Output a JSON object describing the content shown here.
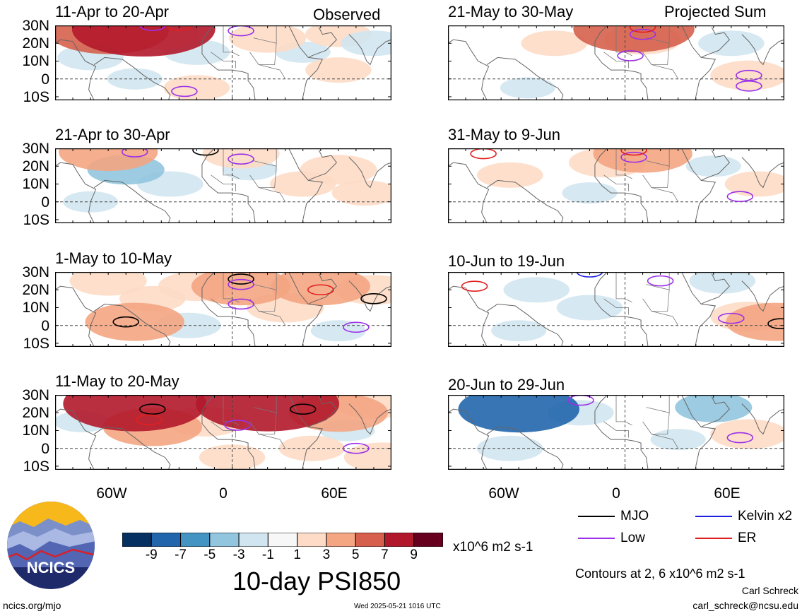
{
  "observed_label": "Observed",
  "projected_label": "Projected Sum",
  "lat_labels": [
    "30N",
    "20N",
    "10N",
    "0",
    "10S"
  ],
  "lon_labels": [
    "60W",
    "0",
    "60E"
  ],
  "chart_data": [
    {
      "type": "heatmap",
      "title": "11-Apr to 20-Apr",
      "column": "left",
      "row": 0,
      "cells": [
        {
          "lon": -70,
          "lat": 27,
          "v": 7
        },
        {
          "lon": -50,
          "lat": 28,
          "v": 9
        },
        {
          "lon": -40,
          "lat": 25,
          "v": 3
        },
        {
          "lon": 20,
          "lat": 23,
          "v": 3
        },
        {
          "lon": 60,
          "lat": 25,
          "v": 2
        },
        {
          "lon": -20,
          "lat": 15,
          "v": -2
        },
        {
          "lon": 40,
          "lat": 15,
          "v": -1
        },
        {
          "lon": 80,
          "lat": 20,
          "v": -2
        },
        {
          "lon": -80,
          "lat": 12,
          "v": -2
        },
        {
          "lon": -55,
          "lat": 0,
          "v": -1
        },
        {
          "lon": 60,
          "lat": 5,
          "v": 2
        },
        {
          "lon": -20,
          "lat": -5,
          "v": 2
        }
      ],
      "contours": [
        {
          "kind": "Low",
          "lon": -45,
          "lat": 30
        },
        {
          "kind": "Low",
          "lon": 5,
          "lat": 27
        },
        {
          "kind": "Low",
          "lon": -27,
          "lat": -7
        },
        {
          "kind": "ER",
          "lon": -30,
          "lat": 30
        }
      ]
    },
    {
      "type": "heatmap",
      "title": "21-Apr to 30-Apr",
      "column": "left",
      "row": 1,
      "cells": [
        {
          "lon": -70,
          "lat": 28,
          "v": 5
        },
        {
          "lon": 5,
          "lat": 27,
          "v": 3
        },
        {
          "lon": 60,
          "lat": 18,
          "v": 3
        },
        {
          "lon": 40,
          "lat": 10,
          "v": 2
        },
        {
          "lon": 75,
          "lat": 5,
          "v": 2
        },
        {
          "lon": -60,
          "lat": 18,
          "v": -3
        },
        {
          "lon": -35,
          "lat": 10,
          "v": -2
        },
        {
          "lon": -80,
          "lat": 0,
          "v": -1
        },
        {
          "lon": 10,
          "lat": 18,
          "v": -1
        }
      ],
      "contours": [
        {
          "kind": "Low",
          "lon": -55,
          "lat": 28
        },
        {
          "kind": "Low",
          "lon": 5,
          "lat": 24
        },
        {
          "kind": "MJO",
          "lon": -15,
          "lat": 29
        }
      ]
    },
    {
      "type": "heatmap",
      "title": "1-May to 10-May",
      "column": "left",
      "row": 2,
      "cells": [
        {
          "lon": -70,
          "lat": 25,
          "v": 3
        },
        {
          "lon": -20,
          "lat": 22,
          "v": 3
        },
        {
          "lon": 5,
          "lat": 22,
          "v": 5
        },
        {
          "lon": 50,
          "lat": 22,
          "v": 5
        },
        {
          "lon": 30,
          "lat": 10,
          "v": 3
        },
        {
          "lon": -45,
          "lat": 15,
          "v": 2
        },
        {
          "lon": -55,
          "lat": 2,
          "v": 5
        },
        {
          "lon": 80,
          "lat": 20,
          "v": 3
        },
        {
          "lon": -25,
          "lat": 0,
          "v": -2
        },
        {
          "lon": 60,
          "lat": -3,
          "v": -1
        }
      ],
      "contours": [
        {
          "kind": "MJO",
          "lon": 5,
          "lat": 26
        },
        {
          "kind": "MJO",
          "lon": -60,
          "lat": 2
        },
        {
          "kind": "MJO",
          "lon": 80,
          "lat": 15
        },
        {
          "kind": "ER",
          "lon": 50,
          "lat": 20
        },
        {
          "kind": "Low",
          "lon": 5,
          "lat": 23
        },
        {
          "kind": "Low",
          "lon": 5,
          "lat": 12
        },
        {
          "kind": "Low",
          "lon": 70,
          "lat": -1
        }
      ]
    },
    {
      "type": "heatmap",
      "title": "11-May to 20-May",
      "column": "left",
      "row": 3,
      "cells": [
        {
          "lon": -55,
          "lat": 25,
          "v": 9
        },
        {
          "lon": 20,
          "lat": 25,
          "v": 9
        },
        {
          "lon": -45,
          "lat": 12,
          "v": 5
        },
        {
          "lon": 60,
          "lat": 20,
          "v": 5
        },
        {
          "lon": -15,
          "lat": 15,
          "v": 3
        },
        {
          "lon": 80,
          "lat": 25,
          "v": 3
        },
        {
          "lon": 0,
          "lat": -5,
          "v": 2
        },
        {
          "lon": 45,
          "lat": 0,
          "v": 2
        },
        {
          "lon": -85,
          "lat": 15,
          "v": -1
        },
        {
          "lon": 65,
          "lat": 10,
          "v": -1
        },
        {
          "lon": 85,
          "lat": -5,
          "v": 3
        }
      ],
      "contours": [
        {
          "kind": "MJO",
          "lon": -45,
          "lat": 22
        },
        {
          "kind": "MJO",
          "lon": 40,
          "lat": 22
        },
        {
          "kind": "ER",
          "lon": -47,
          "lat": 16
        },
        {
          "kind": "Low",
          "lon": 3,
          "lat": 13
        },
        {
          "kind": "Low",
          "lon": 70,
          "lat": 0
        }
      ]
    },
    {
      "type": "heatmap",
      "title": "21-May to 30-May",
      "column": "right",
      "row": 0,
      "cells": [
        {
          "lon": -40,
          "lat": 20,
          "v": 2
        },
        {
          "lon": 10,
          "lat": 22,
          "v": 3
        },
        {
          "lon": 5,
          "lat": 28,
          "v": 7
        },
        {
          "lon": 60,
          "lat": 20,
          "v": -2
        },
        {
          "lon": 70,
          "lat": 2,
          "v": 3
        },
        {
          "lon": -55,
          "lat": -5,
          "v": -1
        }
      ],
      "contours": [
        {
          "kind": "Low",
          "lon": 10,
          "lat": 25
        },
        {
          "kind": "Low",
          "lon": 70,
          "lat": 2
        },
        {
          "kind": "Low",
          "lon": 70,
          "lat": -4
        },
        {
          "kind": "Low",
          "lon": 3,
          "lat": 13
        },
        {
          "kind": "ER",
          "lon": 10,
          "lat": 29
        }
      ]
    },
    {
      "type": "heatmap",
      "title": "31-May to 9-Jun",
      "column": "right",
      "row": 1,
      "cells": [
        {
          "lon": -10,
          "lat": 22,
          "v": 3
        },
        {
          "lon": 10,
          "lat": 27,
          "v": 5
        },
        {
          "lon": -65,
          "lat": 15,
          "v": 2
        },
        {
          "lon": 75,
          "lat": 10,
          "v": 2
        },
        {
          "lon": 50,
          "lat": 20,
          "v": -1
        },
        {
          "lon": -20,
          "lat": 5,
          "v": -1
        }
      ],
      "contours": [
        {
          "kind": "Low",
          "lon": 5,
          "lat": 25
        },
        {
          "kind": "Low",
          "lon": 65,
          "lat": 3
        },
        {
          "kind": "ER",
          "lon": -80,
          "lat": 27
        },
        {
          "kind": "ER",
          "lon": 5,
          "lat": 29
        }
      ]
    },
    {
      "type": "heatmap",
      "title": "10-Jun to 19-Jun",
      "column": "right",
      "row": 2,
      "cells": [
        {
          "lon": -50,
          "lat": 20,
          "v": -2
        },
        {
          "lon": -20,
          "lat": 10,
          "v": -2
        },
        {
          "lon": 55,
          "lat": 25,
          "v": -2
        },
        {
          "lon": 70,
          "lat": 5,
          "v": 3
        },
        {
          "lon": 85,
          "lat": 2,
          "v": 5
        },
        {
          "lon": -60,
          "lat": -3,
          "v": -1
        }
      ],
      "contours": [
        {
          "kind": "Kelvin x2",
          "lon": -20,
          "lat": 30
        },
        {
          "kind": "Low",
          "lon": 20,
          "lat": 25
        },
        {
          "kind": "Low",
          "lon": 60,
          "lat": 4
        },
        {
          "kind": "ER",
          "lon": -85,
          "lat": 22
        },
        {
          "kind": "MJO",
          "lon": 88,
          "lat": 1
        }
      ]
    },
    {
      "type": "heatmap",
      "title": "20-Jun to 29-Jun",
      "column": "right",
      "row": 3,
      "cells": [
        {
          "lon": -60,
          "lat": 22,
          "v": -7
        },
        {
          "lon": -25,
          "lat": 20,
          "v": -2
        },
        {
          "lon": 50,
          "lat": 23,
          "v": -3
        },
        {
          "lon": -65,
          "lat": 0,
          "v": -2
        },
        {
          "lon": 70,
          "lat": 8,
          "v": 3
        },
        {
          "lon": 30,
          "lat": 5,
          "v": -1
        }
      ],
      "contours": [
        {
          "kind": "Low",
          "lon": 65,
          "lat": 6
        },
        {
          "kind": "Low",
          "lon": -25,
          "lat": 27
        }
      ]
    }
  ],
  "colorbar": {
    "colors": [
      "#053061",
      "#2166ac",
      "#4393c3",
      "#92c5de",
      "#d1e5f0",
      "#f7f7f7",
      "#fddbc7",
      "#f4a582",
      "#d6604d",
      "#b2182b",
      "#67001f"
    ],
    "labels": [
      "-9",
      "-7",
      "-5",
      "-3",
      "-1",
      "1",
      "3",
      "5",
      "7",
      "9"
    ],
    "units": "x10^6 m2 s-1"
  },
  "title": "10-day PSI850",
  "legend": [
    {
      "label": "MJO",
      "color": "#000000"
    },
    {
      "label": "Kelvin x2",
      "color": "#1f1fe0"
    },
    {
      "label": "Low",
      "color": "#9b30e8"
    },
    {
      "label": "ER",
      "color": "#e02020"
    }
  ],
  "contours_note": "Contours at 2, 6 x10^6 m2 s-1",
  "author": "Carl Schreck",
  "email": "carl_schreck@ncsu.edu",
  "site": "ncics.org/mjo",
  "timestamp": "Wed 2025-05-21 1016 UTC",
  "logo_text": "NCICS"
}
